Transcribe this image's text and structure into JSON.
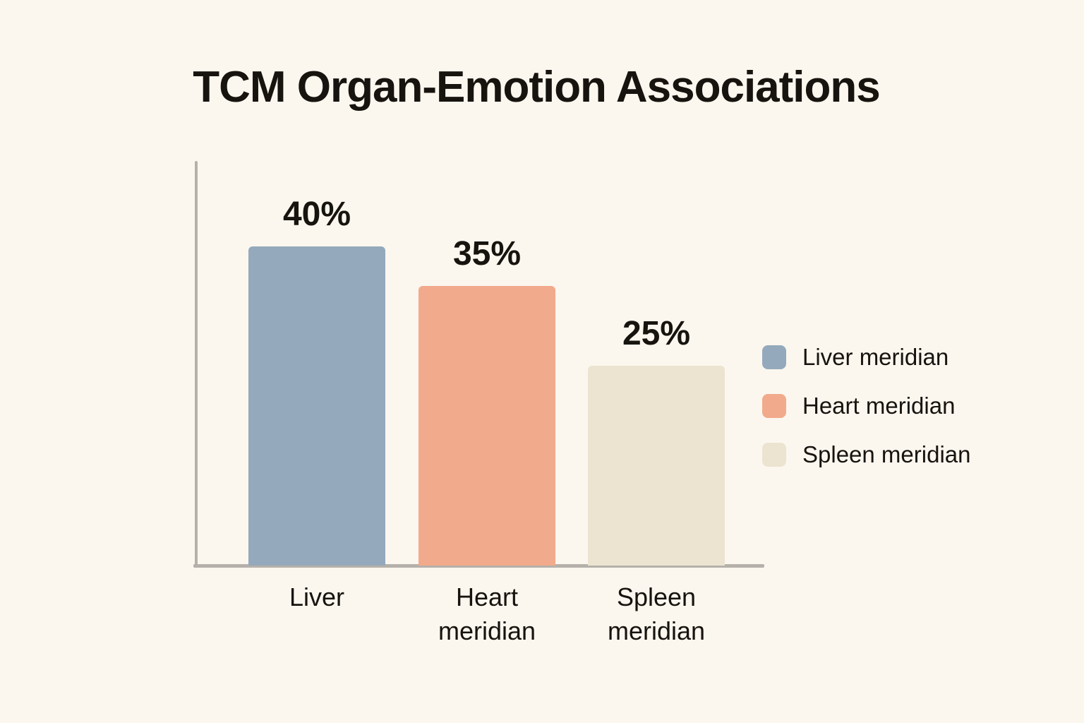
{
  "title": "TCM Organ-Emotion Associations",
  "colors": {
    "background": "#fbf7ef",
    "axis": "#b5b1aa",
    "text": "#17130e"
  },
  "chart_data": {
    "type": "bar",
    "title": "TCM Organ-Emotion Associations",
    "categories": [
      "Liver",
      "Heart\nmeridian",
      "Spleen\nmeridian"
    ],
    "values": [
      40,
      35,
      25
    ],
    "value_labels": [
      "40%",
      "35%",
      "25%"
    ],
    "bar_colors": [
      "#94a9bb",
      "#f2aa8c",
      "#ece3d1"
    ],
    "unit": "%",
    "xlabel": "",
    "ylabel": "",
    "ylim": [
      0,
      50
    ],
    "grid": false,
    "legend_position": "right",
    "legend": [
      {
        "label": "Liver meridian",
        "color": "#94a9bb"
      },
      {
        "label": "Heart meridian",
        "color": "#f2aa8c"
      },
      {
        "label": "Spleen meridian",
        "color": "#ece3d1"
      }
    ]
  }
}
